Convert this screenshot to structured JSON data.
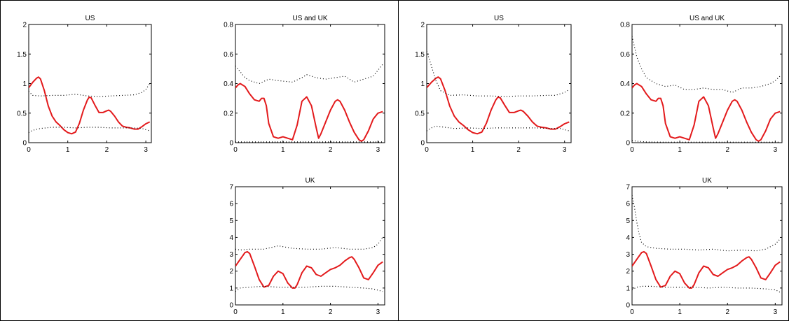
{
  "chart_data": [
    {
      "type": "line",
      "panel": "left",
      "title": "US",
      "xlabel": "",
      "ylabel": "",
      "xlim": [
        0,
        3.14159
      ],
      "ylim": [
        0,
        2
      ],
      "xticks": [
        0,
        1,
        2,
        3
      ],
      "yticks": [
        0,
        0.5,
        1,
        1.5,
        2
      ],
      "yticklabels": [
        "0",
        "0.5",
        "1",
        "1.5",
        "2"
      ],
      "series": [
        {
          "style": "solid",
          "color": "#e31a1c",
          "x": [
            0,
            0.1,
            0.2,
            0.25,
            0.3,
            0.4,
            0.5,
            0.6,
            0.7,
            0.8,
            0.9,
            1.0,
            1.1,
            1.2,
            1.3,
            1.4,
            1.5,
            1.55,
            1.6,
            1.7,
            1.8,
            1.9,
            2.0,
            2.05,
            2.1,
            2.2,
            2.3,
            2.4,
            2.5,
            2.6,
            2.7,
            2.8,
            2.9,
            3.0,
            3.1
          ],
          "y": [
            0.93,
            1.02,
            1.09,
            1.11,
            1.08,
            0.88,
            0.62,
            0.45,
            0.35,
            0.29,
            0.22,
            0.17,
            0.15,
            0.18,
            0.33,
            0.55,
            0.72,
            0.77,
            0.76,
            0.63,
            0.51,
            0.51,
            0.54,
            0.55,
            0.53,
            0.45,
            0.35,
            0.28,
            0.26,
            0.25,
            0.23,
            0.23,
            0.27,
            0.32,
            0.35
          ]
        },
        {
          "style": "dotted",
          "color": "#000000",
          "x": [
            0,
            0.1,
            0.3,
            0.6,
            0.9,
            1.2,
            1.5,
            1.8,
            2.1,
            2.4,
            2.7,
            2.9,
            3.0,
            3.1
          ],
          "y": [
            0.87,
            0.8,
            0.79,
            0.8,
            0.8,
            0.82,
            0.79,
            0.78,
            0.79,
            0.8,
            0.81,
            0.85,
            0.9,
            1.0
          ]
        },
        {
          "style": "dotted",
          "color": "#000000",
          "x": [
            0,
            0.1,
            0.3,
            0.6,
            0.9,
            1.2,
            1.5,
            1.8,
            2.1,
            2.4,
            2.7,
            2.9,
            3.1
          ],
          "y": [
            0.17,
            0.21,
            0.24,
            0.26,
            0.26,
            0.25,
            0.26,
            0.26,
            0.25,
            0.25,
            0.25,
            0.24,
            0.2
          ]
        }
      ]
    },
    {
      "type": "line",
      "panel": "left",
      "title": "US and UK",
      "xlabel": "",
      "ylabel": "",
      "xlim": [
        0,
        3.14159
      ],
      "ylim": [
        0,
        0.8
      ],
      "xticks": [
        0,
        1,
        2,
        3
      ],
      "yticks": [
        0,
        0.2,
        0.4,
        0.6,
        0.8
      ],
      "yticklabels": [
        "0",
        "0.2",
        "0.4",
        "0.6",
        "0.8"
      ],
      "series": [
        {
          "style": "solid",
          "color": "#e31a1c",
          "x": [
            0,
            0.05,
            0.1,
            0.2,
            0.3,
            0.4,
            0.5,
            0.55,
            0.6,
            0.65,
            0.7,
            0.8,
            0.9,
            1.0,
            1.1,
            1.2,
            1.3,
            1.4,
            1.5,
            1.6,
            1.7,
            1.75,
            1.8,
            1.9,
            2.0,
            2.1,
            2.15,
            2.2,
            2.3,
            2.4,
            2.5,
            2.6,
            2.65,
            2.7,
            2.8,
            2.9,
            3.0,
            3.1
          ],
          "y": [
            0.37,
            0.39,
            0.4,
            0.38,
            0.33,
            0.29,
            0.28,
            0.3,
            0.3,
            0.25,
            0.13,
            0.04,
            0.03,
            0.04,
            0.03,
            0.02,
            0.12,
            0.28,
            0.31,
            0.25,
            0.1,
            0.03,
            0.06,
            0.14,
            0.22,
            0.28,
            0.29,
            0.28,
            0.22,
            0.14,
            0.07,
            0.02,
            0.01,
            0.02,
            0.08,
            0.16,
            0.2,
            0.21
          ]
        },
        {
          "style": "dotted",
          "color": "#000000",
          "x": [
            0,
            0.1,
            0.2,
            0.3,
            0.5,
            0.7,
            0.9,
            1.2,
            1.4,
            1.5,
            1.7,
            1.9,
            2.1,
            2.3,
            2.5,
            2.7,
            2.9,
            3.0,
            3.1
          ],
          "y": [
            0.52,
            0.48,
            0.44,
            0.42,
            0.4,
            0.43,
            0.42,
            0.41,
            0.44,
            0.46,
            0.44,
            0.43,
            0.44,
            0.45,
            0.41,
            0.43,
            0.45,
            0.49,
            0.53
          ]
        },
        {
          "style": "dotted",
          "color": "#000000",
          "x": [
            0,
            0.5,
            1.0,
            1.5,
            2.0,
            2.5,
            3.1
          ],
          "y": [
            0.005,
            0.005,
            0.005,
            0.005,
            0.005,
            0.005,
            0.005
          ]
        }
      ]
    },
    {
      "type": "line",
      "panel": "left",
      "title": "UK",
      "xlabel": "",
      "ylabel": "",
      "xlim": [
        0,
        3.14159
      ],
      "ylim": [
        0,
        7
      ],
      "xticks": [
        0,
        1,
        2,
        3
      ],
      "yticks": [
        0,
        1,
        2,
        3,
        4,
        5,
        6,
        7
      ],
      "yticklabels": [
        "0",
        "1",
        "2",
        "3",
        "4",
        "5",
        "6",
        "7"
      ],
      "series": [
        {
          "style": "solid",
          "color": "#e31a1c",
          "x": [
            0,
            0.1,
            0.2,
            0.25,
            0.3,
            0.4,
            0.5,
            0.6,
            0.7,
            0.8,
            0.9,
            1.0,
            1.1,
            1.2,
            1.25,
            1.3,
            1.4,
            1.5,
            1.6,
            1.7,
            1.8,
            1.9,
            2.0,
            2.1,
            2.2,
            2.3,
            2.4,
            2.45,
            2.5,
            2.6,
            2.7,
            2.8,
            2.9,
            3.0,
            3.1
          ],
          "y": [
            2.3,
            2.7,
            3.1,
            3.15,
            3.05,
            2.3,
            1.5,
            1.05,
            1.15,
            1.7,
            2.0,
            1.85,
            1.3,
            1.0,
            1.0,
            1.2,
            1.9,
            2.3,
            2.2,
            1.8,
            1.7,
            1.9,
            2.1,
            2.2,
            2.35,
            2.6,
            2.8,
            2.85,
            2.7,
            2.2,
            1.6,
            1.5,
            1.9,
            2.35,
            2.55
          ]
        },
        {
          "style": "dotted",
          "color": "#000000",
          "x": [
            0,
            0.1,
            0.3,
            0.6,
            0.9,
            1.2,
            1.5,
            1.8,
            2.1,
            2.4,
            2.7,
            2.9,
            3.0,
            3.1
          ],
          "y": [
            3.3,
            3.25,
            3.3,
            3.3,
            3.5,
            3.35,
            3.3,
            3.3,
            3.4,
            3.3,
            3.3,
            3.4,
            3.6,
            4.0
          ]
        },
        {
          "style": "dotted",
          "color": "#000000",
          "x": [
            0,
            0.1,
            0.3,
            0.6,
            0.9,
            1.2,
            1.5,
            1.8,
            2.1,
            2.4,
            2.7,
            2.9,
            3.1
          ],
          "y": [
            0.8,
            1.0,
            1.05,
            1.1,
            1.05,
            1.05,
            1.05,
            1.1,
            1.1,
            1.05,
            1.0,
            0.95,
            0.8
          ]
        }
      ]
    },
    {
      "type": "line",
      "panel": "right",
      "title": "US",
      "xlabel": "",
      "ylabel": "",
      "xlim": [
        0,
        3.14159
      ],
      "ylim": [
        0,
        2
      ],
      "xticks": [
        0,
        1,
        2,
        3
      ],
      "yticks": [
        0,
        0.5,
        1,
        1.5,
        2
      ],
      "yticklabels": [
        "0",
        "0.5",
        "1",
        "1.5",
        "2"
      ],
      "series": [
        {
          "style": "solid",
          "color": "#e31a1c",
          "x": [
            0,
            0.1,
            0.2,
            0.25,
            0.3,
            0.4,
            0.5,
            0.6,
            0.7,
            0.8,
            0.9,
            1.0,
            1.1,
            1.2,
            1.3,
            1.4,
            1.5,
            1.55,
            1.6,
            1.7,
            1.8,
            1.9,
            2.0,
            2.05,
            2.1,
            2.2,
            2.3,
            2.4,
            2.5,
            2.6,
            2.7,
            2.8,
            2.9,
            3.0,
            3.1
          ],
          "y": [
            0.93,
            1.02,
            1.09,
            1.11,
            1.08,
            0.88,
            0.62,
            0.45,
            0.35,
            0.29,
            0.22,
            0.17,
            0.15,
            0.18,
            0.33,
            0.55,
            0.72,
            0.77,
            0.76,
            0.63,
            0.51,
            0.51,
            0.54,
            0.55,
            0.53,
            0.45,
            0.35,
            0.28,
            0.26,
            0.25,
            0.23,
            0.23,
            0.27,
            0.32,
            0.35
          ]
        },
        {
          "style": "dotted",
          "color": "#000000",
          "x": [
            0,
            0.1,
            0.2,
            0.3,
            0.5,
            0.8,
            1.1,
            1.4,
            1.7,
            2.0,
            2.3,
            2.6,
            2.8,
            3.0,
            3.1
          ],
          "y": [
            1.55,
            1.3,
            1.05,
            0.88,
            0.8,
            0.81,
            0.79,
            0.79,
            0.78,
            0.79,
            0.79,
            0.8,
            0.8,
            0.85,
            0.9
          ]
        },
        {
          "style": "dotted",
          "color": "#000000",
          "x": [
            0,
            0.1,
            0.2,
            0.3,
            0.6,
            0.9,
            1.2,
            1.5,
            1.8,
            2.1,
            2.4,
            2.7,
            2.9,
            3.1
          ],
          "y": [
            0.2,
            0.25,
            0.28,
            0.27,
            0.24,
            0.25,
            0.24,
            0.25,
            0.25,
            0.25,
            0.25,
            0.24,
            0.24,
            0.2
          ]
        }
      ]
    },
    {
      "type": "line",
      "panel": "right",
      "title": "US and UK",
      "xlabel": "",
      "ylabel": "",
      "xlim": [
        0,
        3.14159
      ],
      "ylim": [
        0,
        0.8
      ],
      "xticks": [
        0,
        1,
        2,
        3
      ],
      "yticks": [
        0,
        0.2,
        0.4,
        0.6,
        0.8
      ],
      "yticklabels": [
        "0",
        "0.2",
        "0.4",
        "0.6",
        "0.8"
      ],
      "series": [
        {
          "style": "solid",
          "color": "#e31a1c",
          "x": [
            0,
            0.05,
            0.1,
            0.2,
            0.3,
            0.4,
            0.5,
            0.55,
            0.6,
            0.65,
            0.7,
            0.8,
            0.9,
            1.0,
            1.1,
            1.2,
            1.3,
            1.4,
            1.5,
            1.6,
            1.7,
            1.75,
            1.8,
            1.9,
            2.0,
            2.1,
            2.15,
            2.2,
            2.3,
            2.4,
            2.5,
            2.6,
            2.65,
            2.7,
            2.8,
            2.9,
            3.0,
            3.1
          ],
          "y": [
            0.37,
            0.39,
            0.4,
            0.38,
            0.33,
            0.29,
            0.28,
            0.3,
            0.3,
            0.25,
            0.13,
            0.04,
            0.03,
            0.04,
            0.03,
            0.02,
            0.12,
            0.28,
            0.31,
            0.25,
            0.1,
            0.03,
            0.06,
            0.14,
            0.22,
            0.28,
            0.29,
            0.28,
            0.22,
            0.14,
            0.07,
            0.02,
            0.01,
            0.02,
            0.08,
            0.16,
            0.2,
            0.21
          ]
        },
        {
          "style": "dotted",
          "color": "#000000",
          "x": [
            0,
            0.05,
            0.1,
            0.2,
            0.3,
            0.5,
            0.7,
            0.9,
            1.1,
            1.3,
            1.5,
            1.7,
            1.9,
            2.1,
            2.3,
            2.5,
            2.7,
            2.9,
            3.0,
            3.1
          ],
          "y": [
            0.72,
            0.65,
            0.58,
            0.5,
            0.44,
            0.4,
            0.38,
            0.39,
            0.36,
            0.36,
            0.37,
            0.36,
            0.36,
            0.34,
            0.37,
            0.37,
            0.38,
            0.4,
            0.42,
            0.45
          ]
        },
        {
          "style": "dotted",
          "color": "#000000",
          "x": [
            0,
            0.1,
            0.3,
            0.6,
            1.0,
            1.5,
            2.0,
            2.5,
            3.1
          ],
          "y": [
            0.015,
            0.01,
            0.005,
            0.004,
            0.004,
            0.004,
            0.004,
            0.004,
            0.004
          ]
        }
      ]
    },
    {
      "type": "line",
      "panel": "right",
      "title": "UK",
      "xlabel": "",
      "ylabel": "",
      "xlim": [
        0,
        3.14159
      ],
      "ylim": [
        0,
        7
      ],
      "xticks": [
        0,
        1,
        2,
        3
      ],
      "yticks": [
        0,
        1,
        2,
        3,
        4,
        5,
        6,
        7
      ],
      "yticklabels": [
        "0",
        "1",
        "2",
        "3",
        "4",
        "5",
        "6",
        "7"
      ],
      "series": [
        {
          "style": "solid",
          "color": "#e31a1c",
          "x": [
            0,
            0.1,
            0.2,
            0.25,
            0.3,
            0.4,
            0.5,
            0.6,
            0.7,
            0.8,
            0.9,
            1.0,
            1.1,
            1.2,
            1.25,
            1.3,
            1.4,
            1.5,
            1.6,
            1.7,
            1.8,
            1.9,
            2.0,
            2.1,
            2.2,
            2.3,
            2.4,
            2.45,
            2.5,
            2.6,
            2.7,
            2.8,
            2.9,
            3.0,
            3.1
          ],
          "y": [
            2.3,
            2.7,
            3.1,
            3.15,
            3.05,
            2.3,
            1.5,
            1.05,
            1.15,
            1.7,
            2.0,
            1.85,
            1.3,
            1.0,
            1.0,
            1.2,
            1.9,
            2.3,
            2.2,
            1.8,
            1.7,
            1.9,
            2.1,
            2.2,
            2.35,
            2.6,
            2.8,
            2.85,
            2.7,
            2.2,
            1.6,
            1.5,
            1.9,
            2.35,
            2.55
          ]
        },
        {
          "style": "dotted",
          "color": "#000000",
          "x": [
            0,
            0.05,
            0.1,
            0.15,
            0.2,
            0.3,
            0.5,
            0.8,
            1.1,
            1.4,
            1.7,
            2.0,
            2.3,
            2.6,
            2.8,
            3.0,
            3.1
          ],
          "y": [
            6.5,
            5.8,
            4.9,
            4.2,
            3.7,
            3.45,
            3.35,
            3.3,
            3.3,
            3.25,
            3.3,
            3.2,
            3.25,
            3.2,
            3.3,
            3.6,
            3.9
          ]
        },
        {
          "style": "dotted",
          "color": "#000000",
          "x": [
            0,
            0.1,
            0.2,
            0.4,
            0.7,
            1.0,
            1.3,
            1.6,
            1.9,
            2.2,
            2.5,
            2.8,
            3.0,
            3.1
          ],
          "y": [
            0.9,
            1.05,
            1.1,
            1.1,
            1.05,
            1.05,
            1.05,
            1.0,
            1.05,
            1.0,
            1.0,
            0.95,
            0.9,
            0.75
          ]
        }
      ]
    }
  ]
}
